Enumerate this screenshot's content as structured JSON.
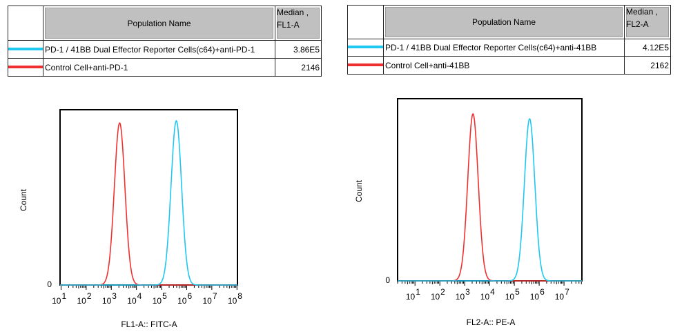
{
  "tables": [
    {
      "header": {
        "name": "Population Name",
        "median_line1": "Median ,",
        "median_line2": "FL1-A"
      },
      "rows": [
        {
          "label": "PD-1 / 41BB Dual Effector Reporter Cells(c64)+anti-PD-1",
          "median": "3.86E5",
          "color": "#1ec8f0"
        },
        {
          "label": "Control Cell+anti-PD-1",
          "median": "2146",
          "color": "#f03030"
        }
      ]
    },
    {
      "header": {
        "name": "Population Name",
        "median_line1": "Median ,",
        "median_line2": "FL2-A"
      },
      "rows": [
        {
          "label": "PD-1 / 41BB Dual Effector Reporter Cells(c64)+anti-41BB",
          "median": "4.12E5",
          "color": "#1ec8f0"
        },
        {
          "label": "Control Cell+anti-41BB",
          "median": "2162",
          "color": "#f03030"
        }
      ]
    }
  ],
  "chart_data": [
    {
      "type": "line",
      "xlabel": "FL1-A:: FITC-A",
      "ylabel": "Count",
      "xscale": "log",
      "xlim_log10": [
        0.96,
        8.02
      ],
      "xticks_exponents": [
        1,
        2,
        3,
        4,
        5,
        6,
        7,
        8
      ],
      "ytick_label": "0",
      "grid": false,
      "series": [
        {
          "name": "PD-1 / 41BB Dual Effector Reporter Cells(c64)+anti-PD-1",
          "color": "#1ec8f0",
          "peak": 386000,
          "peak_relative_height": 0.937,
          "spread_decades": 0.21
        },
        {
          "name": "Control Cell+anti-PD-1",
          "color": "#f03030",
          "peak": 2146,
          "peak_relative_height": 0.925,
          "spread_decades": 0.21
        }
      ]
    },
    {
      "type": "line",
      "xlabel": "FL2-A:: PE-A",
      "ylabel": "Count",
      "xscale": "log",
      "xlim_log10": [
        0.3,
        7.72
      ],
      "xticks_exponents": [
        1,
        2,
        3,
        4,
        5,
        6,
        7
      ],
      "ytick_label": "0",
      "grid": false,
      "series": [
        {
          "name": "PD-1 / 41BB Dual Effector Reporter Cells(c64)+anti-41BB",
          "color": "#1ec8f0",
          "peak": 412000,
          "peak_relative_height": 0.89,
          "spread_decades": 0.21
        },
        {
          "name": "Control Cell+anti-41BB",
          "color": "#f03030",
          "peak": 2162,
          "peak_relative_height": 0.917,
          "spread_decades": 0.21
        }
      ]
    }
  ]
}
